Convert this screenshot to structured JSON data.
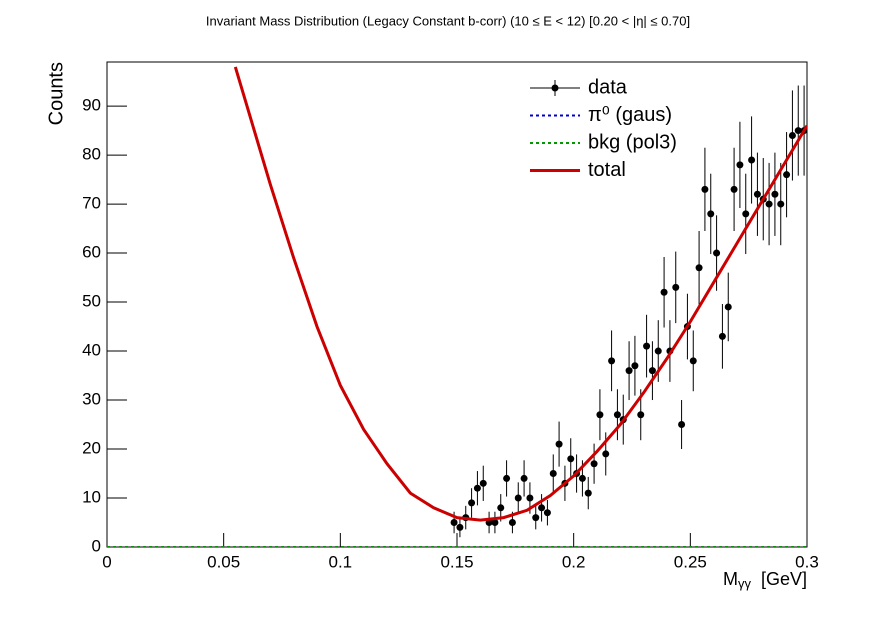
{
  "chart_data": {
    "type": "errorbar",
    "title": "Invariant Mass Distribution (Legacy Constant b-corr)   (10 ≤ E < 12)   [0.20 < |η| ≤ 0.70]",
    "y_label": "Counts",
    "x_label": "M",
    "x_label_sub": "γγ",
    "x_label_unit": "[GeV]",
    "xlim": [
      0,
      0.3
    ],
    "ylim": [
      0,
      99
    ],
    "xticks": [
      0,
      0.05,
      0.1,
      0.15,
      0.2,
      0.25,
      0.3
    ],
    "yticks": [
      0,
      10,
      20,
      30,
      40,
      50,
      60,
      70,
      80,
      90
    ],
    "series": [
      {
        "name": "data",
        "color": "#000000",
        "style": "points",
        "x": [
          0.14875,
          0.15125,
          0.15375,
          0.15625,
          0.15875,
          0.16125,
          0.16375,
          0.16625,
          0.16875,
          0.17125,
          0.17375,
          0.17625,
          0.17875,
          0.18125,
          0.18375,
          0.18625,
          0.18875,
          0.19125,
          0.19375,
          0.19625,
          0.19875,
          0.20125,
          0.20375,
          0.20625,
          0.20875,
          0.21125,
          0.21375,
          0.21625,
          0.21875,
          0.22125,
          0.22375,
          0.22625,
          0.22875,
          0.23125,
          0.23375,
          0.23625,
          0.23875,
          0.24125,
          0.24375,
          0.24625,
          0.24875,
          0.25125,
          0.25375,
          0.25625,
          0.25875,
          0.26125,
          0.26375,
          0.26625,
          0.26875,
          0.27125,
          0.27375,
          0.27625,
          0.27875,
          0.28125,
          0.28375,
          0.28625,
          0.28875,
          0.29125,
          0.29375,
          0.29625,
          0.29875
        ],
        "values": [
          5,
          4,
          6,
          9,
          12,
          13,
          5,
          5,
          8,
          14,
          5,
          10,
          14,
          10,
          6,
          8,
          7,
          15,
          21,
          13,
          18,
          15,
          14,
          11,
          17,
          27,
          19,
          38,
          27,
          26,
          36,
          37,
          27,
          41,
          36,
          40,
          52,
          40,
          53,
          25,
          45,
          38,
          57,
          73,
          68,
          60,
          43,
          49,
          73,
          78,
          68,
          79,
          72,
          71,
          70,
          72,
          70,
          76,
          84,
          85,
          85
        ],
        "errors": [
          2.2,
          2,
          2.4,
          3,
          3.5,
          3.6,
          2.2,
          2.2,
          2.8,
          3.7,
          2.2,
          3.2,
          3.7,
          3.2,
          2.4,
          2.8,
          2.6,
          3.9,
          4.6,
          3.6,
          4.2,
          3.9,
          3.7,
          3.3,
          4.1,
          5.2,
          4.4,
          6.2,
          5.2,
          5.1,
          6,
          6.1,
          5.2,
          6.4,
          6,
          6.3,
          7.2,
          6.3,
          7.3,
          5,
          6.7,
          6.2,
          7.5,
          8.5,
          8.2,
          7.7,
          6.6,
          7,
          8.5,
          8.8,
          8.2,
          8.9,
          8.5,
          8.4,
          8.4,
          8.5,
          8.4,
          8.7,
          9.2,
          9.2,
          9.2
        ]
      },
      {
        "name": "π⁰ (gaus)",
        "color": "#0000cc",
        "style": "dotted",
        "x": [
          0,
          0.3
        ],
        "values": [
          0,
          0
        ]
      },
      {
        "name": "bkg (pol3)",
        "color": "#009900",
        "style": "dotted",
        "x": [
          0,
          0.3
        ],
        "values": [
          0,
          0
        ]
      },
      {
        "name": "total",
        "color": "#cc0000",
        "style": "solid",
        "x": [
          0.055,
          0.06,
          0.07,
          0.08,
          0.09,
          0.1,
          0.11,
          0.12,
          0.13,
          0.14,
          0.15,
          0.16,
          0.17,
          0.18,
          0.19,
          0.2,
          0.21,
          0.22,
          0.23,
          0.24,
          0.25,
          0.26,
          0.27,
          0.28,
          0.29,
          0.3
        ],
        "values": [
          98,
          90,
          74,
          59,
          45,
          33,
          24,
          17,
          11,
          8,
          6,
          5.5,
          6,
          7.5,
          10.5,
          14.5,
          19.5,
          25,
          31.5,
          38.5,
          46,
          54,
          62,
          70,
          78,
          86
        ]
      }
    ]
  }
}
